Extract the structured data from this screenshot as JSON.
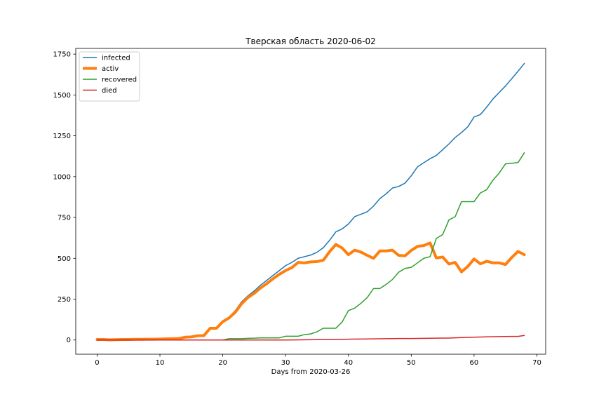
{
  "chart_data": {
    "type": "line",
    "title": "Тверская область 2020-06-02",
    "xlabel": "Days from 2020-03-26",
    "ylabel": "",
    "xlim": [
      -3.4,
      71.4
    ],
    "ylim": [
      -87,
      1785
    ],
    "xticks": [
      0,
      10,
      20,
      30,
      40,
      50,
      60,
      70
    ],
    "yticks": [
      0,
      250,
      500,
      750,
      1000,
      1250,
      1500,
      1750
    ],
    "grid": false,
    "legend_position": "top-left",
    "series": [
      {
        "name": "infected",
        "color": "#1f77b4",
        "width": 1.5,
        "points": [
          [
            0,
            3
          ],
          [
            1,
            3
          ],
          [
            2,
            3
          ],
          [
            3,
            4
          ],
          [
            4,
            4
          ],
          [
            5,
            4
          ],
          [
            6,
            5
          ],
          [
            7,
            5
          ],
          [
            8,
            6
          ],
          [
            9,
            6
          ],
          [
            10,
            7
          ],
          [
            11,
            8
          ],
          [
            12,
            9
          ],
          [
            13,
            10
          ],
          [
            14,
            18
          ],
          [
            15,
            20
          ],
          [
            16,
            27
          ],
          [
            17,
            28
          ],
          [
            18,
            73
          ],
          [
            19,
            73
          ],
          [
            20,
            113
          ],
          [
            21,
            140
          ],
          [
            22,
            180
          ],
          [
            23,
            234
          ],
          [
            24,
            270
          ],
          [
            25,
            300
          ],
          [
            26,
            335
          ],
          [
            27,
            365
          ],
          [
            28,
            395
          ],
          [
            29,
            425
          ],
          [
            30,
            455
          ],
          [
            31,
            475
          ],
          [
            32,
            500
          ],
          [
            33,
            510
          ],
          [
            34,
            520
          ],
          [
            35,
            537
          ],
          [
            36,
            565
          ],
          [
            37,
            610
          ],
          [
            38,
            662
          ],
          [
            39,
            680
          ],
          [
            40,
            710
          ],
          [
            41,
            755
          ],
          [
            42,
            770
          ],
          [
            43,
            785
          ],
          [
            44,
            820
          ],
          [
            45,
            865
          ],
          [
            46,
            895
          ],
          [
            47,
            930
          ],
          [
            48,
            940
          ],
          [
            49,
            960
          ],
          [
            50,
            1005
          ],
          [
            51,
            1060
          ],
          [
            52,
            1085
          ],
          [
            53,
            1110
          ],
          [
            54,
            1130
          ],
          [
            55,
            1165
          ],
          [
            56,
            1200
          ],
          [
            57,
            1240
          ],
          [
            58,
            1270
          ],
          [
            59,
            1305
          ],
          [
            60,
            1365
          ],
          [
            61,
            1380
          ],
          [
            62,
            1425
          ],
          [
            63,
            1475
          ],
          [
            64,
            1515
          ],
          [
            65,
            1555
          ],
          [
            66,
            1600
          ],
          [
            67,
            1645
          ],
          [
            68,
            1693
          ]
        ]
      },
      {
        "name": "activ",
        "color": "#ff7f0e",
        "width": 4,
        "points": [
          [
            0,
            3
          ],
          [
            1,
            3
          ],
          [
            2,
            1
          ],
          [
            3,
            2
          ],
          [
            4,
            3
          ],
          [
            5,
            3
          ],
          [
            6,
            4
          ],
          [
            7,
            4
          ],
          [
            8,
            5
          ],
          [
            9,
            5
          ],
          [
            10,
            6
          ],
          [
            11,
            7
          ],
          [
            12,
            8
          ],
          [
            13,
            9
          ],
          [
            14,
            17
          ],
          [
            15,
            19
          ],
          [
            16,
            26
          ],
          [
            17,
            27
          ],
          [
            18,
            72
          ],
          [
            19,
            72
          ],
          [
            20,
            112
          ],
          [
            21,
            135
          ],
          [
            22,
            170
          ],
          [
            23,
            222
          ],
          [
            24,
            260
          ],
          [
            25,
            285
          ],
          [
            26,
            318
          ],
          [
            27,
            345
          ],
          [
            28,
            375
          ],
          [
            29,
            402
          ],
          [
            30,
            425
          ],
          [
            31,
            443
          ],
          [
            32,
            475
          ],
          [
            33,
            472
          ],
          [
            34,
            478
          ],
          [
            35,
            480
          ],
          [
            36,
            488
          ],
          [
            37,
            540
          ],
          [
            38,
            585
          ],
          [
            39,
            563
          ],
          [
            40,
            522
          ],
          [
            41,
            550
          ],
          [
            42,
            538
          ],
          [
            43,
            518
          ],
          [
            44,
            500
          ],
          [
            45,
            545
          ],
          [
            46,
            545
          ],
          [
            47,
            550
          ],
          [
            48,
            518
          ],
          [
            49,
            515
          ],
          [
            50,
            548
          ],
          [
            51,
            573
          ],
          [
            52,
            578
          ],
          [
            53,
            594
          ],
          [
            54,
            502
          ],
          [
            55,
            508
          ],
          [
            56,
            465
          ],
          [
            57,
            475
          ],
          [
            58,
            417
          ],
          [
            59,
            450
          ],
          [
            60,
            496
          ],
          [
            61,
            466
          ],
          [
            62,
            482
          ],
          [
            63,
            472
          ],
          [
            64,
            472
          ],
          [
            65,
            462
          ],
          [
            66,
            505
          ],
          [
            67,
            542
          ],
          [
            68,
            522
          ]
        ]
      },
      {
        "name": "recovered",
        "color": "#2ca02c",
        "width": 1.5,
        "points": [
          [
            0,
            0
          ],
          [
            20,
            0
          ],
          [
            21,
            8
          ],
          [
            22,
            8
          ],
          [
            23,
            8
          ],
          [
            24,
            10
          ],
          [
            25,
            11
          ],
          [
            26,
            13
          ],
          [
            27,
            13
          ],
          [
            28,
            13
          ],
          [
            29,
            13
          ],
          [
            30,
            23
          ],
          [
            31,
            23
          ],
          [
            32,
            23
          ],
          [
            33,
            33
          ],
          [
            34,
            37
          ],
          [
            35,
            50
          ],
          [
            36,
            72
          ],
          [
            37,
            72
          ],
          [
            38,
            72
          ],
          [
            39,
            110
          ],
          [
            40,
            180
          ],
          [
            41,
            195
          ],
          [
            42,
            225
          ],
          [
            43,
            260
          ],
          [
            44,
            315
          ],
          [
            45,
            315
          ],
          [
            46,
            340
          ],
          [
            47,
            370
          ],
          [
            48,
            415
          ],
          [
            49,
            438
          ],
          [
            50,
            445
          ],
          [
            51,
            472
          ],
          [
            52,
            500
          ],
          [
            53,
            510
          ],
          [
            54,
            622
          ],
          [
            55,
            645
          ],
          [
            56,
            735
          ],
          [
            57,
            755
          ],
          [
            58,
            847
          ],
          [
            59,
            847
          ],
          [
            60,
            847
          ],
          [
            61,
            900
          ],
          [
            62,
            920
          ],
          [
            63,
            978
          ],
          [
            64,
            1022
          ],
          [
            65,
            1078
          ],
          [
            66,
            1082
          ],
          [
            67,
            1086
          ],
          [
            68,
            1146
          ]
        ]
      },
      {
        "name": "died",
        "color": "#d62728",
        "width": 1.5,
        "points": [
          [
            0,
            0
          ],
          [
            30,
            0
          ],
          [
            35,
            2
          ],
          [
            38,
            3
          ],
          [
            40,
            5
          ],
          [
            42,
            6
          ],
          [
            44,
            7
          ],
          [
            46,
            8
          ],
          [
            48,
            9
          ],
          [
            50,
            9
          ],
          [
            52,
            10
          ],
          [
            54,
            11
          ],
          [
            56,
            12
          ],
          [
            58,
            15
          ],
          [
            60,
            17
          ],
          [
            62,
            19
          ],
          [
            64,
            21
          ],
          [
            66,
            22
          ],
          [
            67,
            22
          ],
          [
            68,
            28
          ]
        ]
      }
    ]
  }
}
